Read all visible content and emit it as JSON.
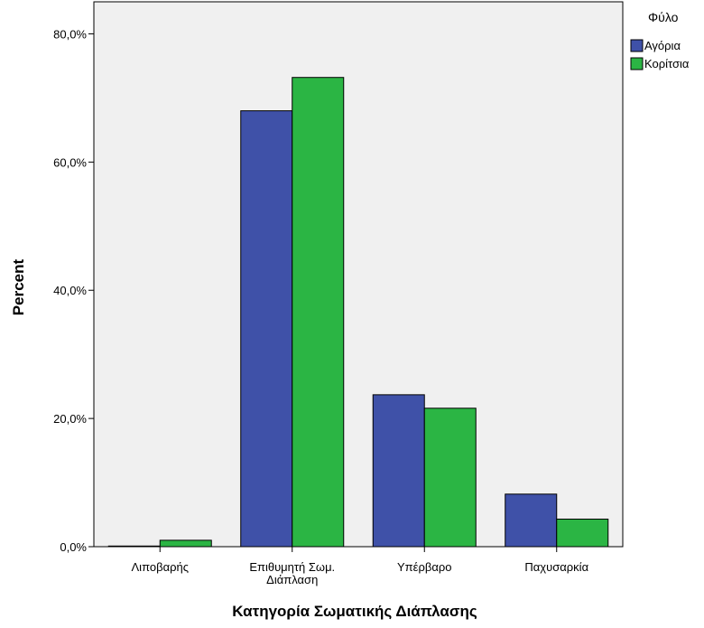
{
  "chart_data": {
    "type": "bar",
    "categories": [
      [
        "Λιποβαρής"
      ],
      [
        "Επιθυμητή Σωμ.",
        "Διάπλαση"
      ],
      [
        "Υπέρβαρο"
      ],
      [
        "Παχυσαρκία"
      ]
    ],
    "series": [
      {
        "name": "Αγόρια",
        "color": "#3f51a8",
        "values": [
          0.1,
          68.0,
          23.7,
          8.2
        ]
      },
      {
        "name": "Κορίτσια",
        "color": "#2bb544",
        "values": [
          1.0,
          73.2,
          21.6,
          4.3
        ]
      }
    ],
    "title": "",
    "xlabel": "Κατηγορία Σωματικής Διάπλασης",
    "ylabel": "Percent",
    "ylim": [
      0,
      85
    ],
    "yticks": [
      0,
      20,
      40,
      60,
      80
    ],
    "ytick_labels": [
      "0,0%",
      "20,0%",
      "40,0%",
      "60,0%",
      "80,0%"
    ],
    "legend_title": "Φύλο",
    "legend_position": "top-right",
    "plot_background": "#f0f0f0",
    "grid": false
  }
}
